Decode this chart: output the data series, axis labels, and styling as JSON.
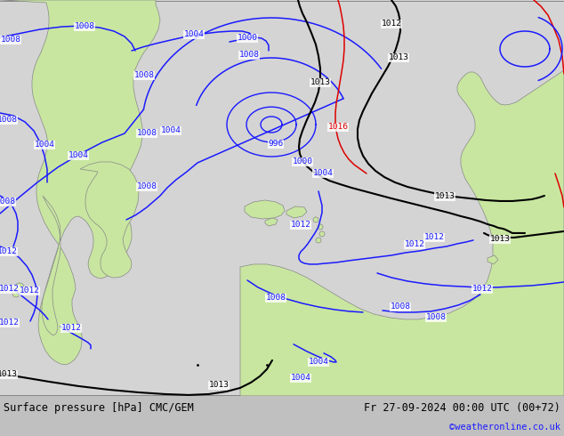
{
  "title_left": "Surface pressure [hPa] CMC/GEM",
  "title_right": "Fr 27-09-2024 00:00 UTC (00+72)",
  "copyright": "©weatheronline.co.uk",
  "bg_ocean": "#d4d4d4",
  "land_color": "#c8e6a0",
  "border_color": "#888888",
  "blue": "#1a1aff",
  "black": "#000000",
  "red": "#dd0000",
  "bar_color": "#c0c0c0",
  "figsize": [
    6.34,
    4.9
  ],
  "dpi": 100
}
